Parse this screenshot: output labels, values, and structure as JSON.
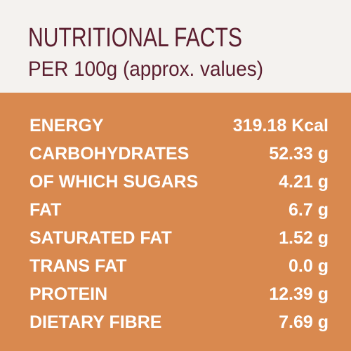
{
  "header": {
    "title": "NUTRITIONAL FACTS",
    "subtitle": "PER 100g (approx. values)"
  },
  "table": {
    "rows": [
      [
        "ENERGY",
        "319.18 Kcal"
      ],
      [
        "CARBOHYDRATES",
        "52.33 g"
      ],
      [
        "OF WHICH SUGARS",
        "4.21 g"
      ],
      [
        "FAT",
        "6.7 g"
      ],
      [
        "SATURATED FAT",
        "1.52 g"
      ],
      [
        "TRANS FAT",
        "0.0 g"
      ],
      [
        "PROTEIN",
        "12.39 g"
      ],
      [
        "DIETARY FIBRE",
        "7.69 g"
      ]
    ]
  }
}
